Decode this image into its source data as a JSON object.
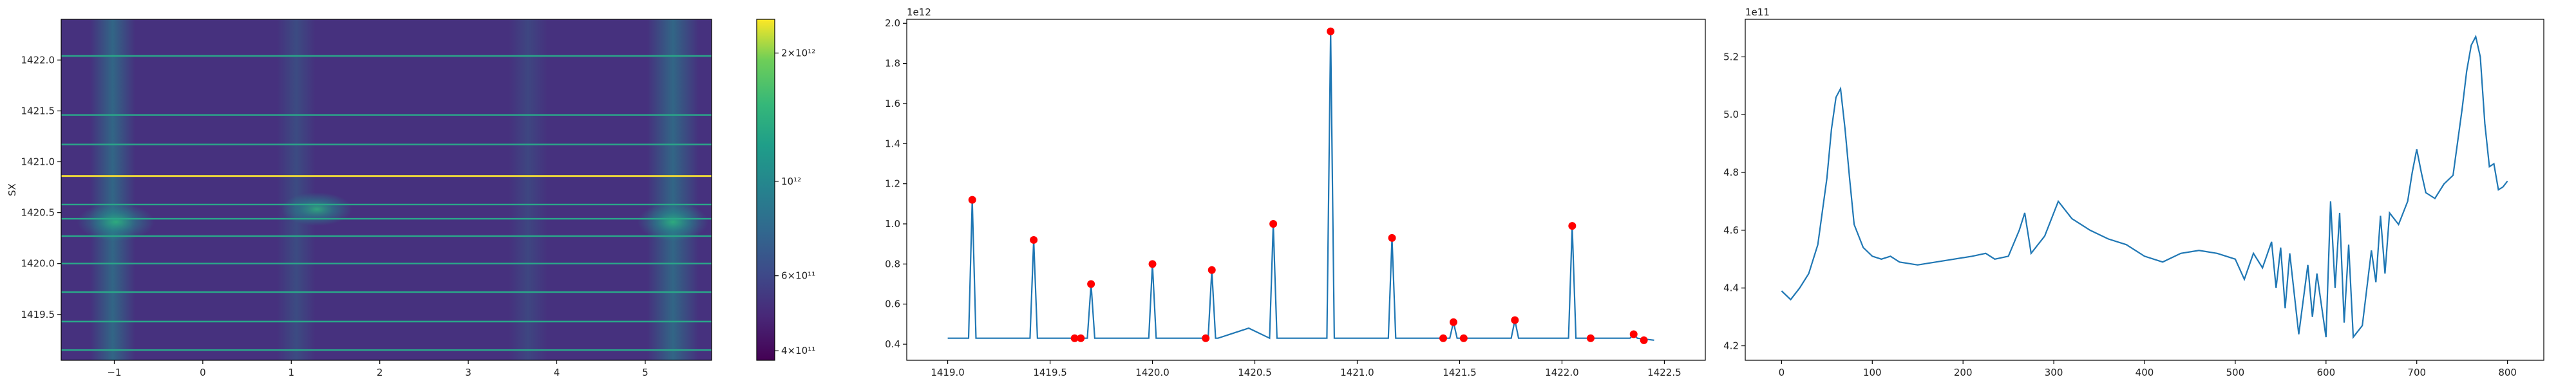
{
  "chart_data": [
    {
      "type": "heatmap",
      "title": "",
      "xlabel": "",
      "ylabel": "SX",
      "xlim": [
        -1.6,
        5.75
      ],
      "ylim": [
        1419.05,
        1422.4
      ],
      "xticks": [
        -1,
        0,
        1,
        2,
        3,
        4,
        5
      ],
      "yticks": [
        1419.5,
        1420.0,
        1420.5,
        1421.0,
        1421.5,
        1422.0
      ],
      "ytick_labels": [
        "1419.5",
        "1420.0",
        "1420.5",
        "1421.0",
        "1421.5",
        "1422.0"
      ],
      "colormap": "viridis",
      "colorbar": {
        "scale": "log",
        "range": [
          380000000000.0,
          2400000000000.0
        ],
        "ticks": [
          400000000000.0,
          600000000000.0,
          1000000000000.0,
          2000000000000.0
        ],
        "tick_labels": [
          "4×10¹¹",
          "6×10¹¹",
          "10¹²",
          "2×10¹²"
        ]
      },
      "bright_rows_y": [
        1419.15,
        1419.43,
        1419.72,
        1420.0,
        1420.27,
        1420.44,
        1420.58,
        1420.86,
        1421.17,
        1421.46,
        1422.04
      ],
      "highlight_row_y": 1420.86
    },
    {
      "type": "line",
      "title": "",
      "xlabel": "",
      "ylabel": "",
      "exponent_label": "1e12",
      "xlim": [
        1418.8,
        1422.7
      ],
      "ylim": [
        0.32,
        2.02
      ],
      "xticks": [
        1419.0,
        1419.5,
        1420.0,
        1420.5,
        1421.0,
        1421.5,
        1422.0,
        1422.5
      ],
      "xtick_labels": [
        "1419.0",
        "1419.5",
        "1420.0",
        "1420.5",
        "1421.0",
        "1421.5",
        "1422.0",
        "1422.5"
      ],
      "yticks": [
        0.4,
        0.6,
        0.8,
        1.0,
        1.2,
        1.4,
        1.6,
        1.8,
        2.0
      ],
      "ytick_labels": [
        "0.4",
        "0.6",
        "0.8",
        "1.0",
        "1.2",
        "1.4",
        "1.6",
        "1.8",
        "2.0"
      ],
      "baseline": 0.43,
      "peaks": [
        {
          "x": 1419.12,
          "y": 1.12
        },
        {
          "x": 1419.42,
          "y": 0.92
        },
        {
          "x": 1419.62,
          "y": 0.43
        },
        {
          "x": 1419.65,
          "y": 0.43
        },
        {
          "x": 1419.7,
          "y": 0.7
        },
        {
          "x": 1420.0,
          "y": 0.8
        },
        {
          "x": 1420.26,
          "y": 0.43
        },
        {
          "x": 1420.29,
          "y": 0.77
        },
        {
          "x": 1420.59,
          "y": 1.0
        },
        {
          "x": 1420.87,
          "y": 1.96
        },
        {
          "x": 1421.17,
          "y": 0.93
        },
        {
          "x": 1421.42,
          "y": 0.43
        },
        {
          "x": 1421.47,
          "y": 0.51
        },
        {
          "x": 1421.52,
          "y": 0.43
        },
        {
          "x": 1421.77,
          "y": 0.52
        },
        {
          "x": 1422.05,
          "y": 0.99
        },
        {
          "x": 1422.14,
          "y": 0.43
        },
        {
          "x": 1422.35,
          "y": 0.45
        },
        {
          "x": 1422.4,
          "y": 0.42
        }
      ],
      "bump": {
        "x_start": 1420.32,
        "x_peak": 1420.47,
        "x_end": 1420.62,
        "y_peak": 0.48
      },
      "marker_color": "#ff0000",
      "line_color": "#1f77b4"
    },
    {
      "type": "line",
      "title": "",
      "xlabel": "",
      "ylabel": "",
      "exponent_label": "1e11",
      "xlim": [
        -40,
        840
      ],
      "ylim": [
        4.15,
        5.33
      ],
      "xticks": [
        0,
        100,
        200,
        300,
        400,
        500,
        600,
        700,
        800
      ],
      "xtick_labels": [
        "0",
        "100",
        "200",
        "300",
        "400",
        "500",
        "600",
        "700",
        "800"
      ],
      "yticks": [
        4.2,
        4.4,
        4.6,
        4.8,
        5.0,
        5.2
      ],
      "ytick_labels": [
        "4.2",
        "4.4",
        "4.6",
        "4.8",
        "5.0",
        "5.2"
      ],
      "line_color": "#1f77b4",
      "x": [
        0,
        10,
        20,
        30,
        40,
        50,
        55,
        60,
        65,
        70,
        75,
        80,
        90,
        100,
        110,
        120,
        130,
        150,
        170,
        190,
        210,
        225,
        235,
        250,
        262,
        268,
        275,
        290,
        300,
        305,
        320,
        340,
        360,
        380,
        400,
        420,
        440,
        460,
        480,
        500,
        510,
        520,
        530,
        540,
        545,
        550,
        555,
        560,
        570,
        580,
        585,
        590,
        600,
        605,
        610,
        615,
        620,
        625,
        630,
        640,
        650,
        655,
        660,
        665,
        670,
        680,
        690,
        695,
        700,
        705,
        710,
        720,
        730,
        740,
        750,
        755,
        760,
        765,
        770,
        775,
        780,
        785,
        790,
        795,
        800
      ],
      "y": [
        4.39,
        4.36,
        4.4,
        4.45,
        4.55,
        4.78,
        4.95,
        5.06,
        5.09,
        4.95,
        4.78,
        4.62,
        4.54,
        4.51,
        4.5,
        4.51,
        4.49,
        4.48,
        4.49,
        4.5,
        4.51,
        4.52,
        4.5,
        4.51,
        4.6,
        4.66,
        4.52,
        4.58,
        4.66,
        4.7,
        4.64,
        4.6,
        4.57,
        4.55,
        4.51,
        4.49,
        4.52,
        4.53,
        4.52,
        4.5,
        4.43,
        4.52,
        4.47,
        4.56,
        4.4,
        4.54,
        4.33,
        4.52,
        4.24,
        4.48,
        4.3,
        4.45,
        4.23,
        4.7,
        4.4,
        4.66,
        4.28,
        4.55,
        4.23,
        4.27,
        4.53,
        4.42,
        4.65,
        4.45,
        4.66,
        4.62,
        4.7,
        4.8,
        4.88,
        4.8,
        4.73,
        4.71,
        4.76,
        4.79,
        5.02,
        5.15,
        5.24,
        5.27,
        5.2,
        4.97,
        4.82,
        4.83,
        4.74,
        4.75,
        4.77
      ]
    }
  ]
}
